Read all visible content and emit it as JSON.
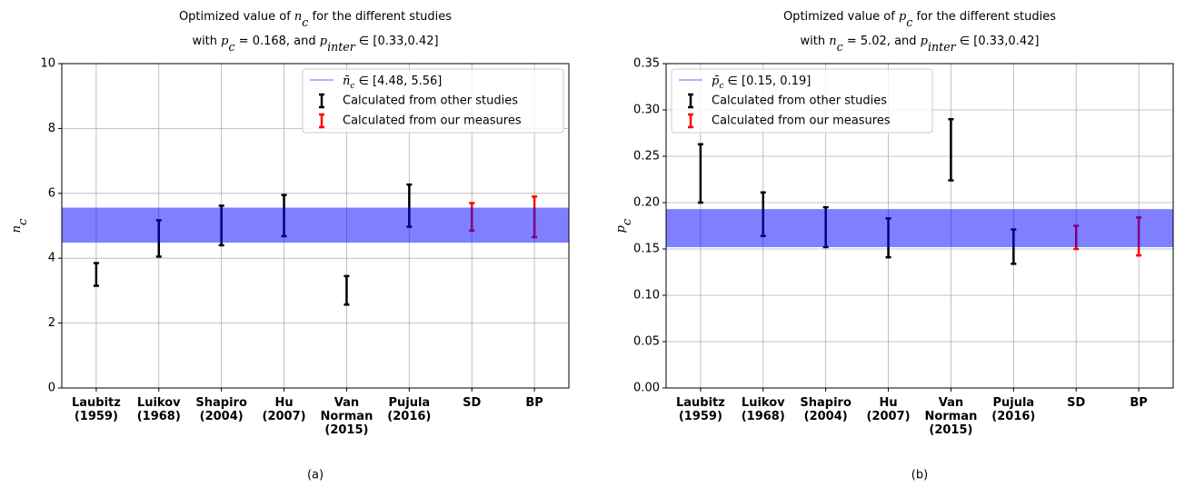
{
  "chart_data": [
    {
      "type": "errorbar",
      "title": [
        [
          "Optimized value of ",
          "n",
          "c",
          " for the different studies"
        ],
        [
          "with ",
          "p",
          "c",
          " = 0.168, and ",
          "p",
          "inter",
          " ∈ [0.33,0.42]"
        ]
      ],
      "ylabel": [
        "n",
        "c"
      ],
      "categories": [
        [
          "Laubitz",
          "(1959)"
        ],
        [
          "Luikov",
          "(1968)"
        ],
        [
          "Shapiro",
          "(2004)"
        ],
        [
          "Hu",
          "(2007)"
        ],
        [
          "Van",
          "Norman",
          "(2015)"
        ],
        [
          "Pujula",
          "(2016)"
        ],
        [
          "SD"
        ],
        [
          "BP"
        ]
      ],
      "series": [
        {
          "name": "Calculated from other studies",
          "color": "#000000",
          "low": [
            3.15,
            4.05,
            4.4,
            4.68,
            2.57,
            4.97,
            null,
            null
          ],
          "high": [
            3.85,
            5.17,
            5.62,
            5.95,
            3.45,
            6.27,
            null,
            null
          ]
        },
        {
          "name": "Calculated from our measures",
          "color": "#ff0000",
          "low": [
            null,
            null,
            null,
            null,
            null,
            null,
            4.85,
            4.65
          ],
          "high": [
            null,
            null,
            null,
            null,
            null,
            null,
            5.7,
            5.9
          ]
        }
      ],
      "band": {
        "label": [
          "n̄",
          "c",
          " ∈ [4.48, 5.56]"
        ],
        "range": [
          4.48,
          5.56
        ],
        "color": "#0000ff"
      },
      "ylim": [
        0,
        10
      ],
      "yticks": [
        0,
        2,
        4,
        6,
        8,
        10
      ],
      "grid": true,
      "legend": "upper right",
      "caption": "(a)"
    },
    {
      "type": "errorbar",
      "title": [
        [
          "Optimized value of ",
          "p",
          "c",
          " for the different studies"
        ],
        [
          "with ",
          "n",
          "c",
          " = 5.02, and ",
          "p",
          "inter",
          " ∈ [0.33,0.42]"
        ]
      ],
      "ylabel": [
        "p",
        "c"
      ],
      "categories": [
        [
          "Laubitz",
          "(1959)"
        ],
        [
          "Luikov",
          "(1968)"
        ],
        [
          "Shapiro",
          "(2004)"
        ],
        [
          "Hu",
          "(2007)"
        ],
        [
          "Van",
          "Norman",
          "(2015)"
        ],
        [
          "Pujula",
          "(2016)"
        ],
        [
          "SD"
        ],
        [
          "BP"
        ]
      ],
      "series": [
        {
          "name": "Calculated from other studies",
          "color": "#000000",
          "low": [
            0.2,
            0.164,
            0.152,
            0.141,
            0.224,
            0.134,
            null,
            null
          ],
          "high": [
            0.263,
            0.211,
            0.195,
            0.183,
            0.29,
            0.171,
            null,
            null
          ]
        },
        {
          "name": "Calculated from our measures",
          "color": "#ff0000",
          "low": [
            null,
            null,
            null,
            null,
            null,
            null,
            0.15,
            0.143
          ],
          "high": [
            null,
            null,
            null,
            null,
            null,
            null,
            0.175,
            0.184
          ]
        }
      ],
      "band": {
        "label": [
          "p̄",
          "c",
          " ∈ [0.15, 0.19]"
        ],
        "range": [
          0.152,
          0.193
        ],
        "color": "#0000ff"
      },
      "ylim": [
        0,
        0.35
      ],
      "yticks": [
        {
          "value": 0,
          "label": "0.00"
        },
        {
          "value": 0.05,
          "label": "0.05"
        },
        {
          "value": 0.1,
          "label": "0.10"
        },
        {
          "value": 0.15,
          "label": "0.15"
        },
        {
          "value": 0.2,
          "label": "0.20"
        },
        {
          "value": 0.25,
          "label": "0.25"
        },
        {
          "value": 0.3,
          "label": "0.30"
        },
        {
          "value": 0.35,
          "label": "0.35"
        }
      ],
      "grid": true,
      "legend": "upper left",
      "caption": "(b)"
    }
  ]
}
